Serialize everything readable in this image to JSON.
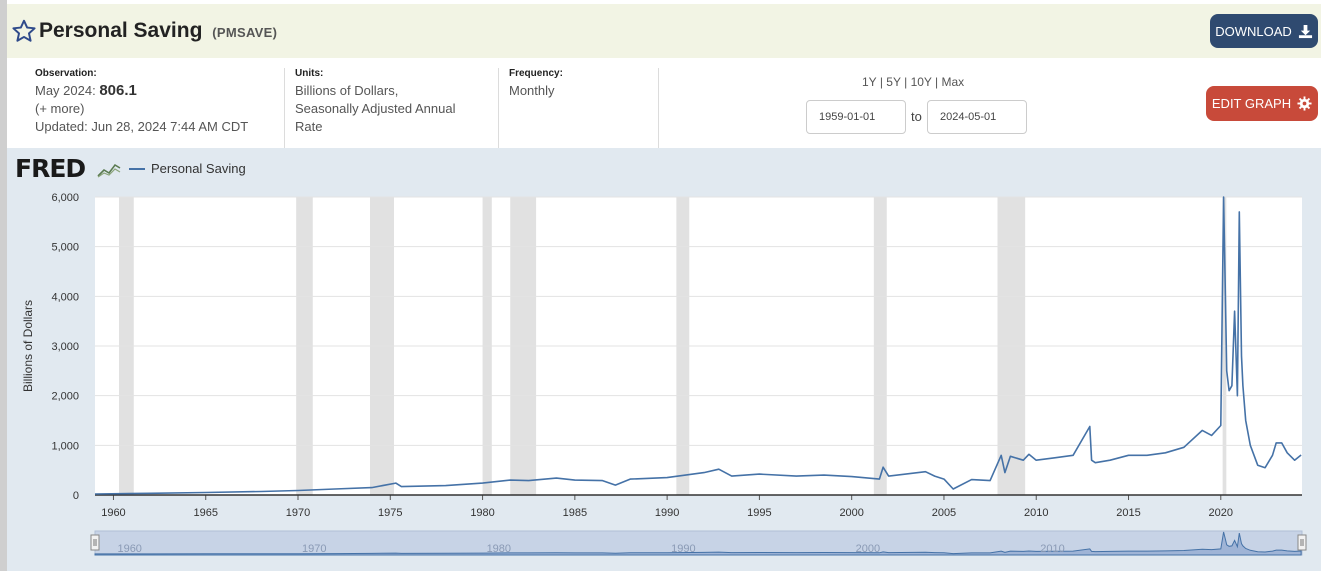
{
  "header": {
    "title": "Personal Saving",
    "series_code": "(PMSAVE)",
    "download_label": "DOWNLOAD",
    "star_icon": "star-outline-icon",
    "download_icon": "download-icon"
  },
  "meta": {
    "observation_label": "Observation:",
    "observation_date": "May 2024:",
    "observation_value": "806.1",
    "more_link": "(+ more)",
    "updated": "Updated: Jun 28, 2024 7:44 AM CDT",
    "units_label": "Units:",
    "units_text": "Billions of Dollars,",
    "units_text2": "Seasonally Adjusted Annual",
    "units_text3": "Rate",
    "frequency_label": "Frequency:",
    "frequency_text": "Monthly"
  },
  "range": {
    "r1y": "1Y",
    "r5y": "5Y",
    "r10y": "10Y",
    "rmax": "Max",
    "sep": "|",
    "start_date": "1959-01-01",
    "to_label": "to",
    "end_date": "2024-05-01",
    "edit_label": "EDIT GRAPH",
    "gear_icon": "gear-icon"
  },
  "brand": {
    "logo_text": "FRED",
    "accent": "#4572a7"
  },
  "chart_data": {
    "type": "line",
    "ylabel": "Billions of Dollars",
    "ylim": [
      0,
      6000
    ],
    "xlim": [
      1959,
      2024.4
    ],
    "y_ticks": [
      0,
      1000,
      2000,
      3000,
      4000,
      5000,
      6000
    ],
    "y_tick_labels": [
      "0",
      "1,000",
      "2,000",
      "3,000",
      "4,000",
      "5,000",
      "6,000"
    ],
    "x_ticks": [
      1960,
      1965,
      1970,
      1975,
      1980,
      1985,
      1990,
      1995,
      2000,
      2005,
      2010,
      2015,
      2020
    ],
    "x_tick_labels": [
      "1960",
      "1965",
      "1970",
      "1975",
      "1980",
      "1985",
      "1990",
      "1995",
      "2000",
      "2005",
      "2010",
      "2015",
      "2020"
    ],
    "navigator_labels": [
      "1960",
      "1970",
      "1980",
      "1990",
      "2000",
      "2010"
    ],
    "grid": true,
    "recessions": [
      [
        1960.3,
        1961.1
      ],
      [
        1969.9,
        1970.8
      ],
      [
        1973.9,
        1975.2
      ],
      [
        1980.0,
        1980.5
      ],
      [
        1981.5,
        1982.9
      ],
      [
        1990.5,
        1991.2
      ],
      [
        2001.2,
        2001.9
      ],
      [
        2007.9,
        2009.4
      ],
      [
        2020.1,
        2020.3
      ]
    ],
    "series": [
      {
        "name": "Personal Saving",
        "color": "#4572a7",
        "x": [
          1959.0,
          1962.0,
          1965.0,
          1968.0,
          1970.0,
          1972.0,
          1974.0,
          1975.3,
          1975.6,
          1978.0,
          1980.0,
          1981.5,
          1982.5,
          1984.0,
          1985.0,
          1986.5,
          1987.2,
          1988.0,
          1990.0,
          1992.0,
          1992.8,
          1993.5,
          1995.0,
          1997.0,
          1998.5,
          2000.0,
          2001.5,
          2001.7,
          2002.0,
          2004.0,
          2004.5,
          2005.0,
          2005.5,
          2006.5,
          2007.5,
          2008.1,
          2008.3,
          2008.6,
          2009.3,
          2009.6,
          2010.0,
          2011.0,
          2012.0,
          2012.9,
          2013.0,
          2013.2,
          2014.0,
          2015.0,
          2016.0,
          2017.0,
          2018.0,
          2019.0,
          2019.5,
          2020.0,
          2020.15,
          2020.25,
          2020.32,
          2020.45,
          2020.6,
          2020.75,
          2020.9,
          2021.0,
          2021.12,
          2021.2,
          2021.35,
          2021.6,
          2022.0,
          2022.4,
          2022.8,
          2023.0,
          2023.3,
          2023.6,
          2024.0,
          2024.35
        ],
        "y": [
          20,
          35,
          50,
          70,
          90,
          120,
          150,
          240,
          170,
          190,
          240,
          300,
          290,
          340,
          300,
          290,
          200,
          320,
          350,
          450,
          520,
          380,
          420,
          380,
          400,
          370,
          320,
          560,
          380,
          470,
          380,
          320,
          120,
          310,
          290,
          800,
          450,
          780,
          700,
          820,
          700,
          750,
          800,
          1380,
          700,
          650,
          700,
          800,
          800,
          850,
          960,
          1300,
          1200,
          1400,
          6000,
          4000,
          2500,
          2100,
          2200,
          3700,
          2000,
          5700,
          2800,
          2200,
          1500,
          1000,
          600,
          550,
          800,
          1050,
          1050,
          850,
          700,
          806
        ]
      }
    ]
  }
}
